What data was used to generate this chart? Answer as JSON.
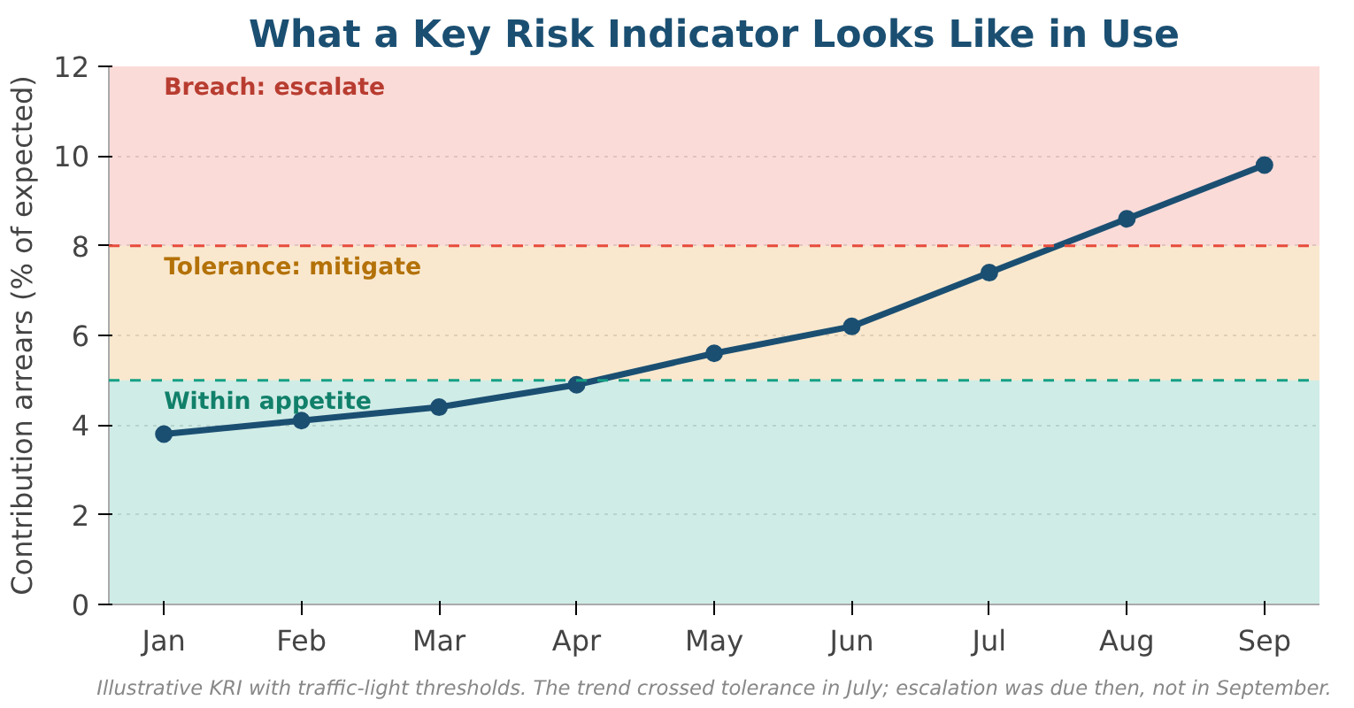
{
  "chart_data": {
    "type": "line",
    "title": "What a Key Risk Indicator Looks Like in Use",
    "ylabel": "Contribution arrears (% of expected)",
    "categories": [
      "Jan",
      "Feb",
      "Mar",
      "Apr",
      "May",
      "Jun",
      "Jul",
      "Aug",
      "Sep"
    ],
    "series": [
      {
        "color": "#1b4f72",
        "values": [
          3.8,
          4.1,
          4.4,
          4.9,
          5.6,
          6.2,
          7.4,
          8.6,
          9.8
        ]
      }
    ],
    "ylim": [
      0,
      12
    ],
    "yticks": [
      0,
      2,
      4,
      6,
      8,
      10,
      12
    ],
    "grid": "y",
    "marker": "circle",
    "line_style": "solid",
    "bands": [
      {
        "axis": "y",
        "from": 0,
        "to": 5,
        "label": "Within appetite",
        "color": "#16a085"
      },
      {
        "axis": "y",
        "from": 5,
        "to": 8,
        "label": "Tolerance: mitigate",
        "color": "#e08e0b"
      },
      {
        "axis": "y",
        "from": 8,
        "to": 12,
        "label": "Breach: escalate",
        "color": "#e74c3c"
      }
    ],
    "ref_lines": [
      {
        "axis": "y",
        "value": 5,
        "color": "#16a085",
        "line_style": "dashed"
      },
      {
        "axis": "y",
        "value": 8,
        "color": "#e74c3c",
        "line_style": "dashed"
      }
    ],
    "annotations": [
      "Illustrative KRI with traffic-light thresholds. The trend crossed tolerance in July; escalation was due then, not in September."
    ]
  }
}
